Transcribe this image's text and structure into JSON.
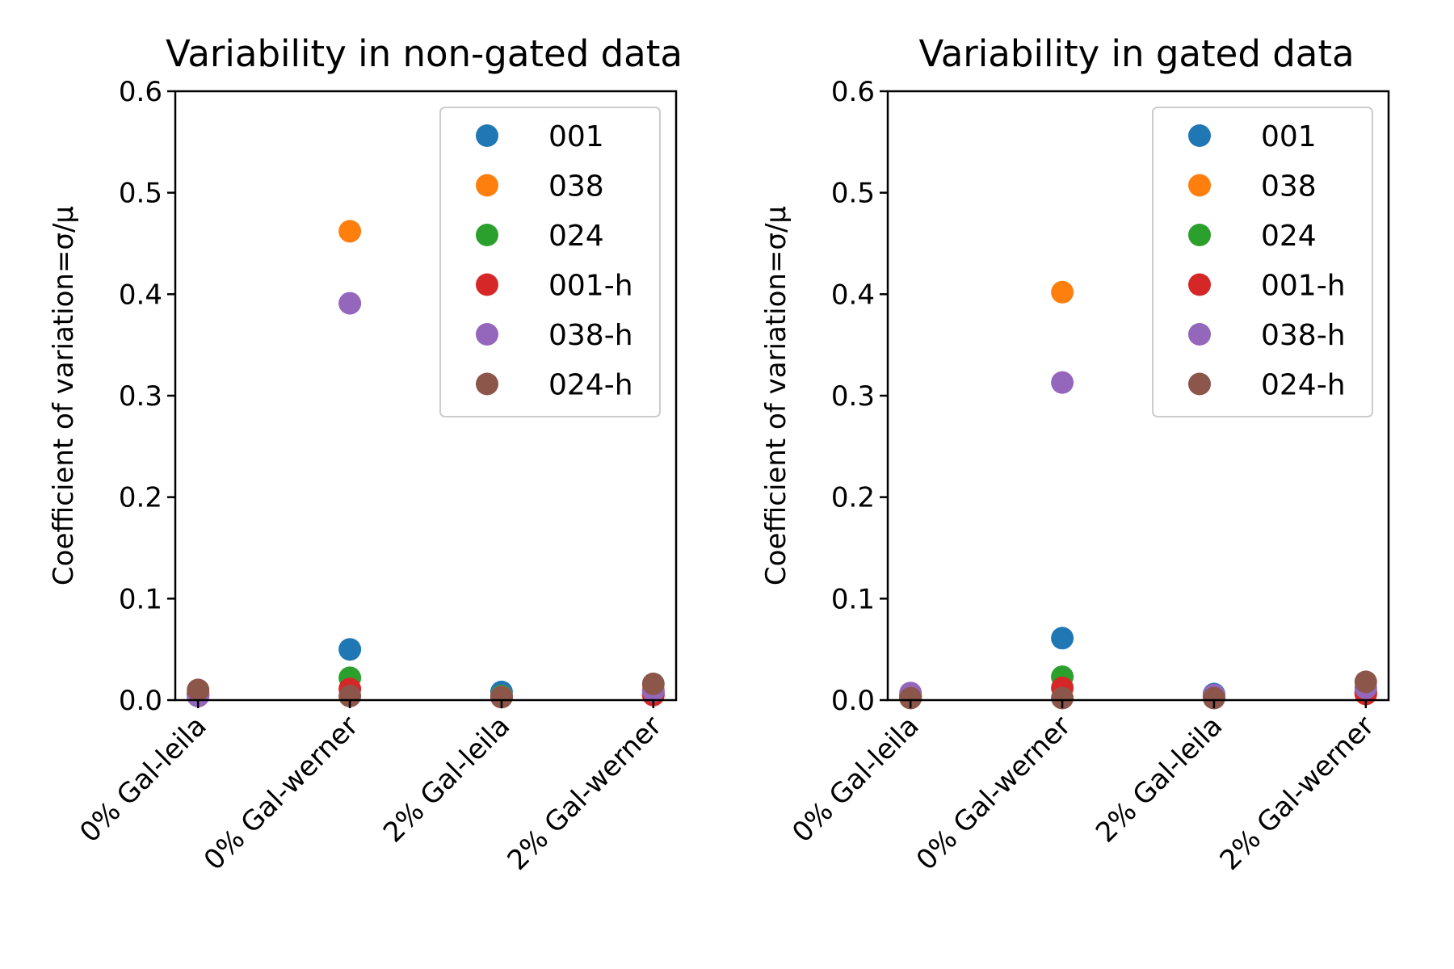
{
  "chart_data": [
    {
      "type": "scatter",
      "title": "Variability in non-gated data",
      "xlabel": "",
      "ylabel": "Coefficient of variation=σ/μ",
      "categories": [
        "0% Gal-leila",
        "0% Gal-werner",
        "2% Gal-leila",
        "2% Gal-werner"
      ],
      "ylim": [
        0,
        0.6
      ],
      "yticks": [
        "0.0",
        "0.1",
        "0.2",
        "0.3",
        "0.4",
        "0.5",
        "0.6"
      ],
      "grid": false,
      "legend_position": "upper right",
      "series": [
        {
          "name": "001",
          "color": "#1f77b4",
          "values": [
            0.005,
            0.05,
            0.008,
            0.006
          ]
        },
        {
          "name": "038",
          "color": "#ff7f0e",
          "values": [
            0.004,
            0.462,
            0.004,
            0.01
          ]
        },
        {
          "name": "024",
          "color": "#2ca02c",
          "values": [
            0.006,
            0.022,
            0.004,
            0.008
          ]
        },
        {
          "name": "001-h",
          "color": "#d62728",
          "values": [
            0.006,
            0.011,
            0.003,
            0.005
          ]
        },
        {
          "name": "038-h",
          "color": "#9467bd",
          "values": [
            0.004,
            0.391,
            0.003,
            0.009
          ]
        },
        {
          "name": "024-h",
          "color": "#8c564b",
          "values": [
            0.01,
            0.004,
            0.003,
            0.016
          ]
        }
      ]
    },
    {
      "type": "scatter",
      "title": "Variability in gated data",
      "xlabel": "",
      "ylabel": "Coefficient of variation=σ/μ",
      "categories": [
        "0% Gal-leila",
        "0% Gal-werner",
        "2% Gal-leila",
        "2% Gal-werner"
      ],
      "ylim": [
        0,
        0.6
      ],
      "yticks": [
        "0.0",
        "0.1",
        "0.2",
        "0.3",
        "0.4",
        "0.5",
        "0.6"
      ],
      "grid": false,
      "legend_position": "upper right",
      "series": [
        {
          "name": "001",
          "color": "#1f77b4",
          "values": [
            0.004,
            0.061,
            0.006,
            0.007
          ]
        },
        {
          "name": "038",
          "color": "#ff7f0e",
          "values": [
            0.004,
            0.402,
            0.004,
            0.009
          ]
        },
        {
          "name": "024",
          "color": "#2ca02c",
          "values": [
            0.005,
            0.023,
            0.004,
            0.008
          ]
        },
        {
          "name": "001-h",
          "color": "#d62728",
          "values": [
            0.003,
            0.012,
            0.003,
            0.006
          ]
        },
        {
          "name": "038-h",
          "color": "#9467bd",
          "values": [
            0.007,
            0.313,
            0.005,
            0.012
          ]
        },
        {
          "name": "024-h",
          "color": "#8c564b",
          "values": [
            0.002,
            0.002,
            0.002,
            0.018
          ]
        }
      ]
    }
  ]
}
